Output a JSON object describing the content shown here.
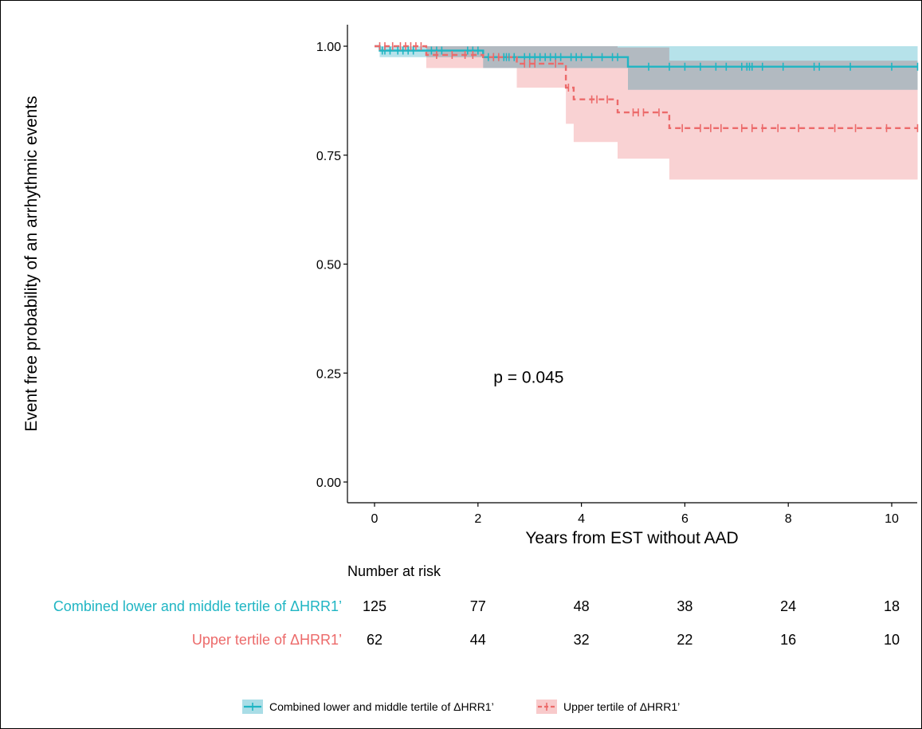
{
  "chart_data": {
    "type": "line",
    "subtype": "kaplan-meier",
    "title": "",
    "xlabel": "Years from EST without AAD",
    "ylabel": "Event free probability of an arrhythmic events",
    "xlim": [
      -0.5,
      10.5
    ],
    "ylim": [
      -0.05,
      1.04
    ],
    "x_ticks": [
      0,
      2,
      4,
      6,
      8,
      10
    ],
    "y_ticks": [
      0.0,
      0.25,
      0.5,
      0.75,
      1.0
    ],
    "x_tick_labels": [
      "0",
      "2",
      "4",
      "6",
      "8",
      "10"
    ],
    "y_tick_labels": [
      "0.00",
      "0.25",
      "0.50",
      "0.75",
      "1.00"
    ],
    "grid": false,
    "annotation": "p = 0.045",
    "annotation_pos": [
      2.3,
      0.24
    ],
    "legend_position": "bottom",
    "series": [
      {
        "name": "Combined lower and middle tertile of ΔHRR1’",
        "color": "#1fb5c3",
        "ci_color": "#a9dde6",
        "dash": "solid",
        "steps": [
          [
            0,
            1.0
          ],
          [
            0.1,
            0.99
          ],
          [
            1.0,
            0.99
          ],
          [
            2.1,
            0.975
          ],
          [
            4.9,
            0.953
          ],
          [
            10.5,
            0.953
          ]
        ],
        "ci_upper": [
          [
            0,
            1.0
          ],
          [
            10.5,
            1.0
          ]
        ],
        "ci_lower": [
          [
            0,
            1.0
          ],
          [
            0.1,
            0.975
          ],
          [
            1.0,
            0.975
          ],
          [
            2.1,
            0.95
          ],
          [
            4.9,
            0.9
          ],
          [
            10.5,
            0.9
          ]
        ],
        "censor_x": [
          0.15,
          0.2,
          0.3,
          0.45,
          0.55,
          0.65,
          0.75,
          1.1,
          1.2,
          1.3,
          1.8,
          1.9,
          2.0,
          2.2,
          2.3,
          2.4,
          2.5,
          2.55,
          2.6,
          2.7,
          2.9,
          3.0,
          3.1,
          3.2,
          3.3,
          3.4,
          3.5,
          3.6,
          3.8,
          3.9,
          4.0,
          4.2,
          4.4,
          4.6,
          4.7,
          5.3,
          5.7,
          6.0,
          6.3,
          6.6,
          6.8,
          7.1,
          7.2,
          7.25,
          7.3,
          7.5,
          7.9,
          8.5,
          8.6,
          9.2,
          10.0,
          10.5
        ]
      },
      {
        "name": "Upper tertile of  ΔHRR1’",
        "color": "#ec6a6a",
        "ci_color": "#f8cacb",
        "dash": "dashed",
        "steps": [
          [
            0,
            1.0
          ],
          [
            1.0,
            0.98
          ],
          [
            2.1,
            0.975
          ],
          [
            2.75,
            0.96
          ],
          [
            3.7,
            0.905
          ],
          [
            3.85,
            0.878
          ],
          [
            4.7,
            0.848
          ],
          [
            5.7,
            0.812
          ],
          [
            10.5,
            0.812
          ]
        ],
        "ci_upper": [
          [
            0,
            1.0
          ],
          [
            3.85,
            1.0
          ],
          [
            4.7,
            0.997
          ],
          [
            5.7,
            0.967
          ],
          [
            10.5,
            0.967
          ]
        ],
        "ci_lower": [
          [
            0,
            1.0
          ],
          [
            1.0,
            0.95
          ],
          [
            2.75,
            0.905
          ],
          [
            3.7,
            0.822
          ],
          [
            3.85,
            0.78
          ],
          [
            4.7,
            0.742
          ],
          [
            5.7,
            0.694
          ],
          [
            10.5,
            0.694
          ]
        ],
        "censor_x": [
          0.1,
          0.2,
          0.35,
          0.5,
          0.6,
          0.7,
          0.8,
          0.9,
          1.2,
          1.5,
          1.75,
          1.9,
          2.3,
          2.4,
          2.9,
          3.0,
          3.1,
          3.5,
          3.75,
          4.2,
          4.3,
          4.5,
          5.0,
          5.1,
          5.2,
          5.5,
          5.95,
          6.3,
          6.5,
          6.7,
          7.1,
          7.3,
          7.5,
          7.8,
          8.2,
          8.9,
          9.3,
          9.9,
          10.5
        ]
      }
    ],
    "risk_table": {
      "title": "Number at risk",
      "times": [
        0,
        2,
        4,
        6,
        8,
        10
      ],
      "rows": [
        {
          "label": "Combined lower and middle tertile of ΔHRR1’",
          "color": "#1fb5c3",
          "values": [
            "125",
            "77",
            "48",
            "38",
            "24",
            "18"
          ]
        },
        {
          "label": "Upper tertile of  ΔHRR1’",
          "color": "#ec6a6a",
          "values": [
            "62",
            "44",
            "32",
            "22",
            "16",
            "10"
          ]
        }
      ]
    }
  }
}
